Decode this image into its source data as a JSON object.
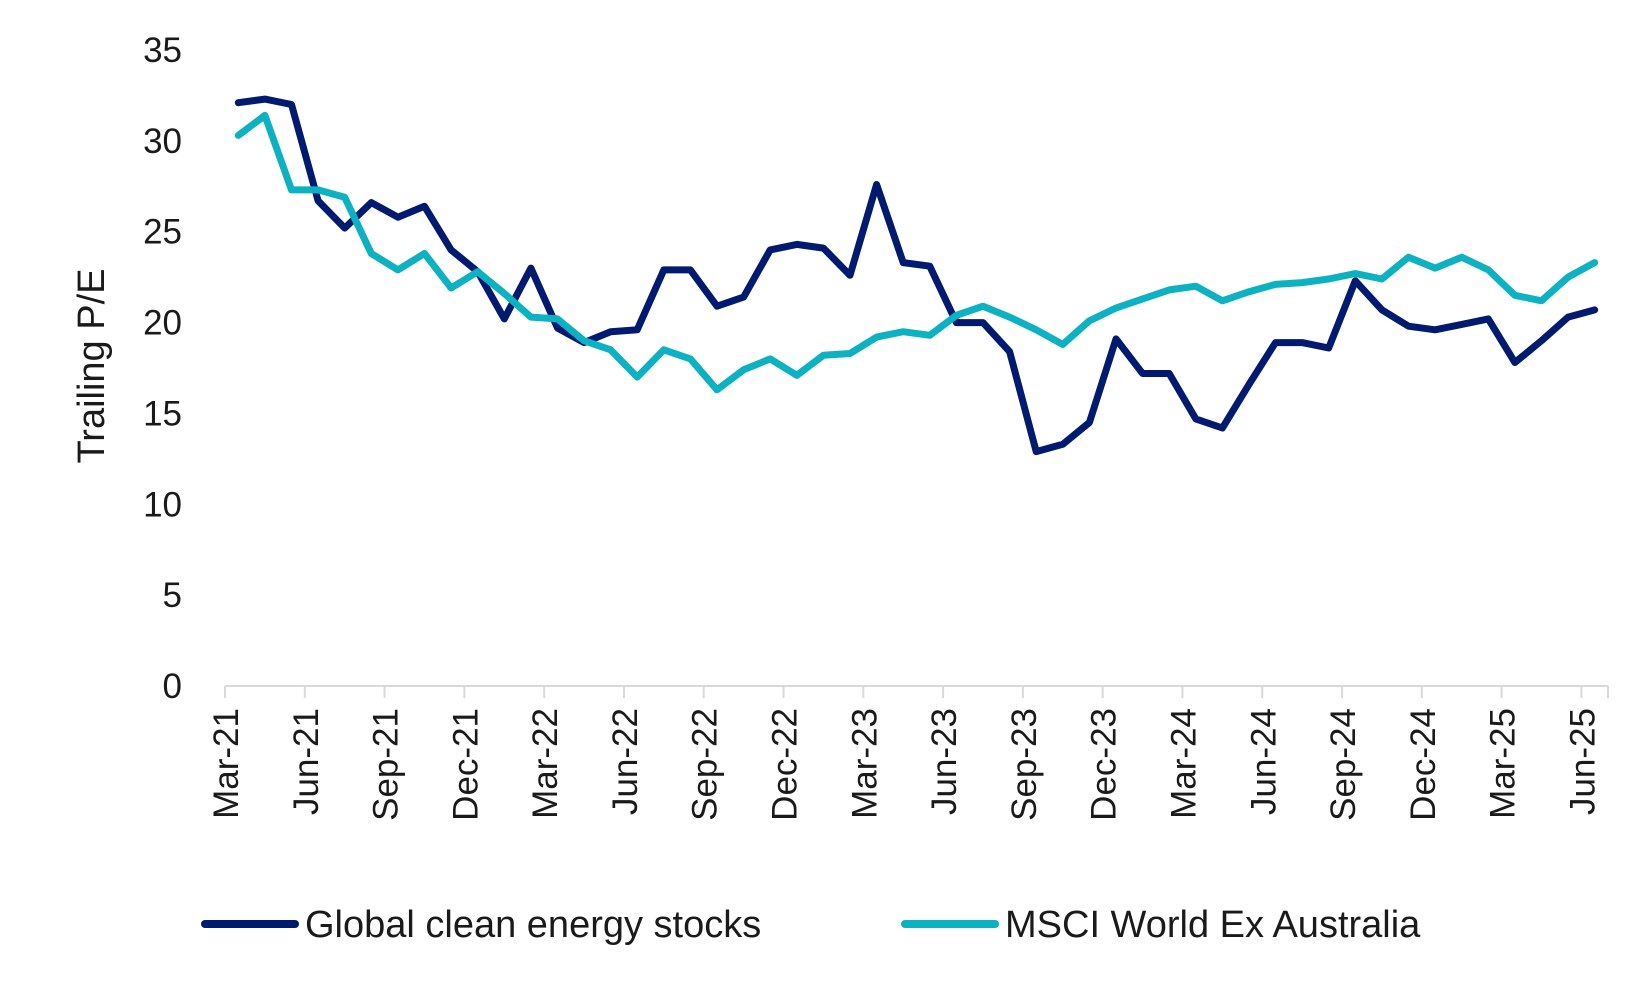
{
  "chart_data": {
    "type": "line",
    "title": "",
    "xlabel": "",
    "ylabel": "Trailing P/E",
    "ylim": [
      0,
      35
    ],
    "yticks": [
      0,
      5,
      10,
      15,
      20,
      25,
      30,
      35
    ],
    "x_tick_labels": [
      "Mar-21",
      "Jun-21",
      "Sep-21",
      "Dec-21",
      "Mar-22",
      "Jun-22",
      "Sep-22",
      "Dec-22",
      "Mar-23",
      "Jun-23",
      "Sep-23",
      "Dec-23",
      "Mar-24",
      "Jun-24",
      "Sep-24",
      "Dec-24",
      "Mar-25",
      "Jun-25"
    ],
    "grid": false,
    "legend_position": "bottom",
    "series": [
      {
        "name": "Global clean energy stocks",
        "color": "#001a70",
        "values": [
          32.1,
          32.3,
          32.0,
          26.7,
          25.2,
          26.6,
          25.8,
          26.4,
          24.0,
          22.8,
          20.2,
          23.0,
          19.7,
          18.9,
          19.5,
          19.6,
          22.9,
          22.9,
          20.9,
          21.4,
          24.0,
          24.3,
          24.1,
          22.6,
          27.6,
          23.3,
          23.1,
          20.0,
          20.0,
          18.4,
          12.9,
          13.3,
          14.5,
          19.1,
          17.2,
          17.2,
          14.7,
          14.2,
          16.6,
          18.9,
          18.9,
          18.6,
          22.3,
          20.7,
          19.8,
          19.6,
          19.9,
          20.2,
          17.8,
          19.0,
          20.3,
          20.7
        ]
      },
      {
        "name": "MSCI World Ex Australia",
        "color": "#0cb2c2",
        "values": [
          30.3,
          31.4,
          27.3,
          27.3,
          26.9,
          23.8,
          22.9,
          23.8,
          21.9,
          22.8,
          21.6,
          20.3,
          20.2,
          19.0,
          18.5,
          17.0,
          18.5,
          18.0,
          16.3,
          17.4,
          18.0,
          17.1,
          18.2,
          18.3,
          19.2,
          19.5,
          19.3,
          20.4,
          20.9,
          20.3,
          19.6,
          18.8,
          20.1,
          20.8,
          21.3,
          21.8,
          22.0,
          21.2,
          21.7,
          22.1,
          22.2,
          22.4,
          22.7,
          22.4,
          23.6,
          23.0,
          23.6,
          22.9,
          21.5,
          21.2,
          22.5,
          23.3
        ]
      }
    ]
  }
}
